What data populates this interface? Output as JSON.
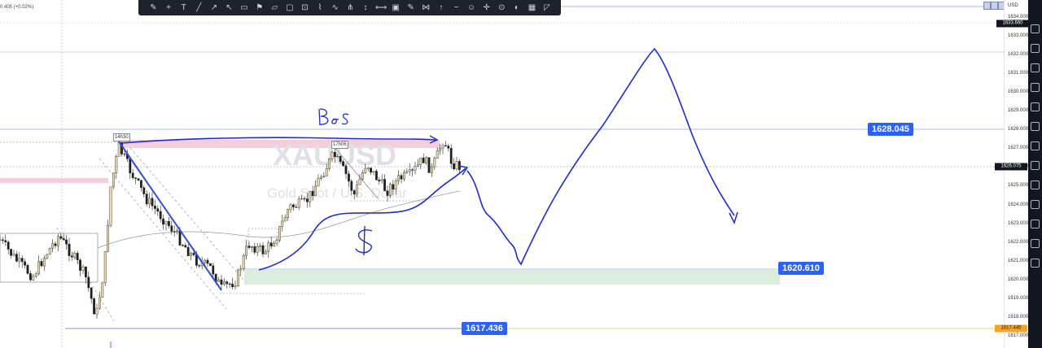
{
  "header": {
    "change_text": "0.405 (+0.02%)",
    "currency": "USD"
  },
  "watermark": {
    "symbol": "XAUUSD",
    "subtitle": "Gold Spot / U.S. Dollar"
  },
  "price_scale": {
    "ticks": [
      "1634.000",
      "1633.000",
      "1632.000",
      "1631.000",
      "1630.000",
      "1629.000",
      "1628.000",
      "1627.000",
      "1626.000",
      "1625.000",
      "1624.000",
      "1623.000",
      "1622.000",
      "1621.000",
      "1620.000",
      "1619.000",
      "1618.000",
      "1617.000"
    ],
    "current_price": "1626.075",
    "top_label": "1633.660",
    "low_label": "1617.445"
  },
  "annotations": {
    "resistance_level": "1628.045",
    "support_level": "1620.610",
    "low_level": "1617.436",
    "time_label_1": "14h30",
    "time_label_2": "17h06",
    "handwritten_bos": "Bos",
    "handwritten_dollar": "$"
  },
  "colors": {
    "accent": "#2962ff",
    "drawing": "#1d2bd6",
    "sidebar": "#131722",
    "zone_red": "#f5c6d2",
    "zone_green": "#d7ecd9",
    "orange": "#f7a325"
  },
  "toolbar": {
    "icons": [
      "pencil-icon",
      "crosshair-icon",
      "text-icon",
      "trendline-icon",
      "line-icon",
      "arrow-icon",
      "rectangle-icon",
      "flag-icon",
      "callout-icon",
      "note-icon",
      "price-label-icon",
      "brush-icon",
      "path-icon",
      "pitchfork-icon",
      "measure-icon",
      "fib-icon",
      "rect-tool-icon",
      "gann-icon",
      "pattern-icon",
      "forecast-icon",
      "curve-icon",
      "icon-icon",
      "cross-tool-icon",
      "target-icon",
      "eye-icon",
      "ruler-icon",
      "triangle-icon"
    ]
  }
}
